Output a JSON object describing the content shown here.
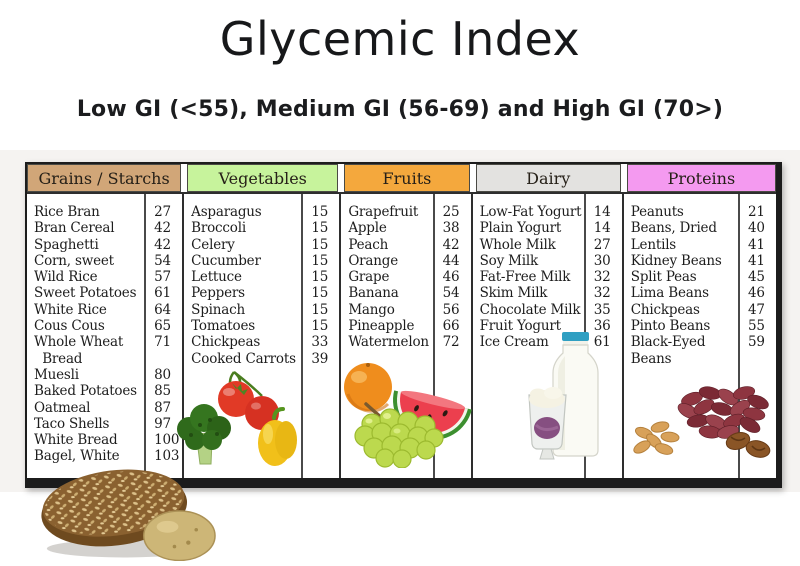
{
  "title": "Glycemic Index",
  "subtitle": "Low GI (<55), Medium GI (56-69) and High GI (70>)",
  "legend": {
    "low": "Low GI (<55)",
    "medium": "Medium GI (56-69)",
    "high": "High GI (70>)"
  },
  "columns": [
    {
      "header": "Grains / Starchs",
      "header_color": "#d1a678",
      "image": "bread-and-potato-image",
      "items": [
        {
          "name": "Rice Bran",
          "value": "27"
        },
        {
          "name": "Bran Cereal",
          "value": "42"
        },
        {
          "name": "Spaghetti",
          "value": "42"
        },
        {
          "name": "Corn, sweet",
          "value": "54"
        },
        {
          "name": "Wild Rice",
          "value": "57"
        },
        {
          "name": "Sweet Potatoes",
          "value": "61"
        },
        {
          "name": "White Rice",
          "value": "64"
        },
        {
          "name": "Cous Cous",
          "value": "65"
        },
        {
          "name": "Whole Wheat\n  Bread",
          "value": "71"
        },
        {
          "name": "Muesli",
          "value": "80"
        },
        {
          "name": "Baked Potatoes",
          "value": "85"
        },
        {
          "name": "Oatmeal",
          "value": "87"
        },
        {
          "name": "Taco Shells",
          "value": "97"
        },
        {
          "name": "White Bread",
          "value": "100"
        },
        {
          "name": "Bagel, White",
          "value": "103"
        }
      ]
    },
    {
      "header": "Vegetables",
      "header_color": "#c7f39c",
      "image": "broccoli-tomato-pepper-image",
      "items": [
        {
          "name": "Asparagus",
          "value": "15"
        },
        {
          "name": "Broccoli",
          "value": "15"
        },
        {
          "name": "Celery",
          "value": "15"
        },
        {
          "name": "Cucumber",
          "value": "15"
        },
        {
          "name": "Lettuce",
          "value": "15"
        },
        {
          "name": "Peppers",
          "value": "15"
        },
        {
          "name": "Spinach",
          "value": "15"
        },
        {
          "name": "Tomatoes",
          "value": "15"
        },
        {
          "name": "Chickpeas",
          "value": "33"
        },
        {
          "name": "Cooked Carrots",
          "value": "39"
        }
      ]
    },
    {
      "header": "Fruits",
      "header_color": "#f4a83d",
      "image": "orange-grapes-watermelon-image",
      "items": [
        {
          "name": "Grapefruit",
          "value": "25"
        },
        {
          "name": "Apple",
          "value": "38"
        },
        {
          "name": "Peach",
          "value": "42"
        },
        {
          "name": "Orange",
          "value": "44"
        },
        {
          "name": "Grape",
          "value": "46"
        },
        {
          "name": "Banana",
          "value": "54"
        },
        {
          "name": "Mango",
          "value": "56"
        },
        {
          "name": "Pineapple",
          "value": "66"
        },
        {
          "name": "Watermelon",
          "value": "72"
        }
      ]
    },
    {
      "header": "Dairy",
      "header_color": "#e3e2e0",
      "image": "milk-bottle-and-yogurt-image",
      "items": [
        {
          "name": "Low-Fat Yogurt",
          "value": "14"
        },
        {
          "name": "Plain Yogurt",
          "value": "14"
        },
        {
          "name": "Whole Milk",
          "value": "27"
        },
        {
          "name": "Soy Milk",
          "value": "30"
        },
        {
          "name": "Fat-Free Milk",
          "value": "32"
        },
        {
          "name": "Skim Milk",
          "value": "32"
        },
        {
          "name": "Chocolate Milk",
          "value": "35"
        },
        {
          "name": "Fruit Yogurt",
          "value": "36"
        },
        {
          "name": "Ice Cream",
          "value": "61"
        }
      ]
    },
    {
      "header": "Proteins",
      "header_color": "#f49af0",
      "image": "beans-peanuts-pecans-image",
      "items": [
        {
          "name": "Peanuts",
          "value": "21"
        },
        {
          "name": "Beans, Dried",
          "value": "40"
        },
        {
          "name": "Lentils",
          "value": "41"
        },
        {
          "name": "Kidney Beans",
          "value": "41"
        },
        {
          "name": "Split Peas",
          "value": "45"
        },
        {
          "name": "Lima Beans",
          "value": "46"
        },
        {
          "name": "Chickpeas",
          "value": "47"
        },
        {
          "name": "Pinto Beans",
          "value": "55"
        },
        {
          "name": "Black-Eyed Beans",
          "value": "59"
        }
      ]
    }
  ],
  "chart_data": {
    "type": "table",
    "title": "Glycemic Index",
    "subtitle": "Low GI (<55), Medium GI (56-69) and High GI (70>)",
    "groups": [
      {
        "name": "Grains / Starchs",
        "items": [
          [
            "Rice Bran",
            27
          ],
          [
            "Bran Cereal",
            42
          ],
          [
            "Spaghetti",
            42
          ],
          [
            "Corn, sweet",
            54
          ],
          [
            "Wild Rice",
            57
          ],
          [
            "Sweet Potatoes",
            61
          ],
          [
            "White Rice",
            64
          ],
          [
            "Cous Cous",
            65
          ],
          [
            "Whole Wheat Bread",
            71
          ],
          [
            "Muesli",
            80
          ],
          [
            "Baked Potatoes",
            85
          ],
          [
            "Oatmeal",
            87
          ],
          [
            "Taco Shells",
            97
          ],
          [
            "White Bread",
            100
          ],
          [
            "Bagel, White",
            103
          ]
        ]
      },
      {
        "name": "Vegetables",
        "items": [
          [
            "Asparagus",
            15
          ],
          [
            "Broccoli",
            15
          ],
          [
            "Celery",
            15
          ],
          [
            "Cucumber",
            15
          ],
          [
            "Lettuce",
            15
          ],
          [
            "Peppers",
            15
          ],
          [
            "Spinach",
            15
          ],
          [
            "Tomatoes",
            15
          ],
          [
            "Chickpeas",
            33
          ],
          [
            "Cooked Carrots",
            39
          ]
        ]
      },
      {
        "name": "Fruits",
        "items": [
          [
            "Grapefruit",
            25
          ],
          [
            "Apple",
            38
          ],
          [
            "Peach",
            42
          ],
          [
            "Orange",
            44
          ],
          [
            "Grape",
            46
          ],
          [
            "Banana",
            54
          ],
          [
            "Mango",
            56
          ],
          [
            "Pineapple",
            66
          ],
          [
            "Watermelon",
            72
          ]
        ]
      },
      {
        "name": "Dairy",
        "items": [
          [
            "Low-Fat Yogurt",
            14
          ],
          [
            "Plain Yogurt",
            14
          ],
          [
            "Whole Milk",
            27
          ],
          [
            "Soy Milk",
            30
          ],
          [
            "Fat-Free Milk",
            32
          ],
          [
            "Skim Milk",
            32
          ],
          [
            "Chocolate Milk",
            35
          ],
          [
            "Fruit Yogurt",
            36
          ],
          [
            "Ice Cream",
            61
          ]
        ]
      },
      {
        "name": "Proteins",
        "items": [
          [
            "Peanuts",
            21
          ],
          [
            "Beans, Dried",
            40
          ],
          [
            "Lentils",
            41
          ],
          [
            "Kidney Beans",
            41
          ],
          [
            "Split Peas",
            45
          ],
          [
            "Lima Beans",
            46
          ],
          [
            "Chickpeas",
            47
          ],
          [
            "Pinto Beans",
            55
          ],
          [
            "Black-Eyed Beans",
            59
          ]
        ]
      }
    ]
  },
  "colors": {
    "grains_header": "#d1a678",
    "vegetables_header": "#c7f39c",
    "fruits_header": "#f4a83d",
    "dairy_header": "#e3e2e0",
    "proteins_header": "#f49af0",
    "table_border": "#1c1c1c",
    "body_text": "#1d1d1d"
  }
}
